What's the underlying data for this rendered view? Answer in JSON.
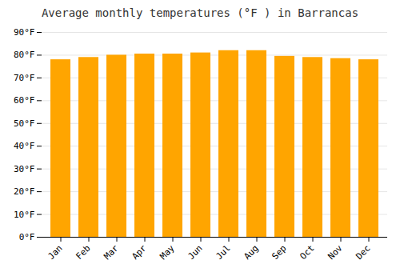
{
  "chart_data": {
    "type": "bar",
    "title": "Average monthly temperatures (°F ) in Barrancas",
    "categories": [
      "Jan",
      "Feb",
      "Mar",
      "Apr",
      "May",
      "Jun",
      "Jul",
      "Aug",
      "Sep",
      "Oct",
      "Nov",
      "Dec"
    ],
    "values": [
      78,
      79,
      80,
      80.5,
      80.5,
      81,
      82,
      82,
      79.5,
      79,
      78.5,
      78
    ],
    "color": "#FFA500",
    "ylim": [
      0,
      90
    ],
    "yticks": [
      {
        "value": 0,
        "label": "0°F"
      },
      {
        "value": 10,
        "label": "10°F"
      },
      {
        "value": 20,
        "label": "20°F"
      },
      {
        "value": 30,
        "label": "30°F"
      },
      {
        "value": 40,
        "label": "40°F"
      },
      {
        "value": 50,
        "label": "50°F"
      },
      {
        "value": 60,
        "label": "60°F"
      },
      {
        "value": 70,
        "label": "70°F"
      },
      {
        "value": 80,
        "label": "80°F"
      },
      {
        "value": 90,
        "label": "90°F"
      }
    ],
    "grid": true
  }
}
